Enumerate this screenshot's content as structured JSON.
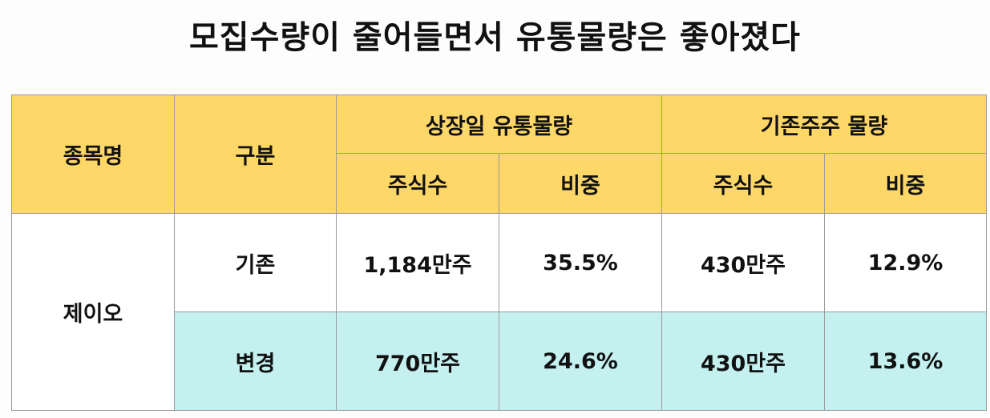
{
  "header": {
    "title": "모집수량이 줄어들면서 유통물량은 좋아졌다"
  },
  "table": {
    "headers": [
      "종목명",
      "구분"
    ],
    "groups": [
      {
        "label": "상장일 유통물량",
        "columns": [
          "주식수",
          "비중"
        ]
      },
      {
        "label": "기존주주 물량",
        "columns": [
          "주식수",
          "비중"
        ]
      }
    ],
    "stock": "제이오",
    "rows": [
      [
        "기존",
        "1,184만주",
        "35.5%",
        "430만주",
        "12.9%"
      ],
      [
        "변경",
        "770만주",
        "24.6%",
        "430만주",
        "13.6%"
      ]
    ]
  }
}
